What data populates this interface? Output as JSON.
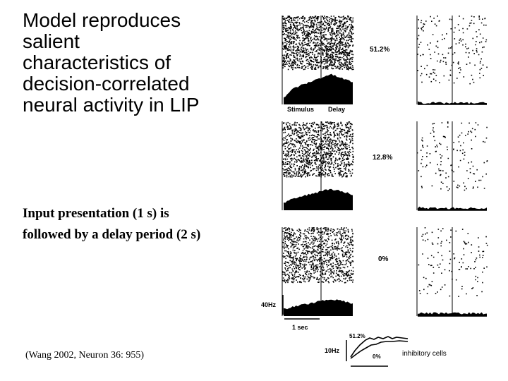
{
  "slide": {
    "title": "Model reproduces\nsalient\ncharacteristics of\ndecision-correlated\nneural activity in LIP",
    "subtitle": "Input presentation (1 s) is\nfollowed by a delay period (2 s)",
    "citation": "(Wang 2002, Neuron 36: 955)"
  },
  "figure": {
    "conditions": [
      {
        "coherence": "51.2%"
      },
      {
        "coherence": "12.8%"
      },
      {
        "coherence": "0%"
      }
    ],
    "stimulus_label": "Stimulus",
    "delay_label": "Delay",
    "rate_scale_label": "40Hz",
    "time_scale_label": "1 sec",
    "inset": {
      "scale_label": "10Hz",
      "high_label": "51.2%",
      "low_label": "0%",
      "cells_label": "inhibitory cells"
    }
  }
}
